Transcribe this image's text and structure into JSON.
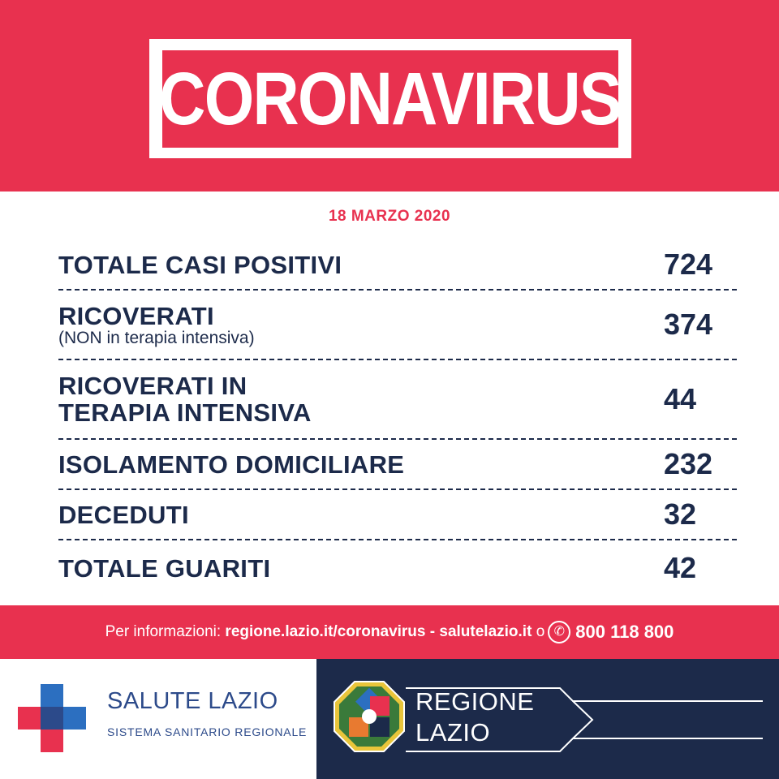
{
  "header": {
    "title": "CORONAVIRUS"
  },
  "date": "18 MARZO 2020",
  "stats": [
    {
      "label": "TOTALE CASI POSITIVI",
      "sub": "",
      "value": "724"
    },
    {
      "label": "RICOVERATI",
      "sub": "(NON in terapia intensiva)",
      "value": "374"
    },
    {
      "label_line1": "RICOVERATI IN",
      "label_line2": "TERAPIA INTENSIVA",
      "value": "44"
    },
    {
      "label": "ISOLAMENTO DOMICILIARE",
      "sub": "",
      "value": "232"
    },
    {
      "label": "DECEDUTI",
      "sub": "",
      "value": "32"
    },
    {
      "label": "TOTALE GUARITI",
      "sub": "",
      "value": "42"
    }
  ],
  "info": {
    "prefix": "Per informazioni:",
    "link1": "regione.lazio.it/coronavirus",
    "separator": "-",
    "link2": "salutelazio.it",
    "conj": "o",
    "phone_icon": "phone-icon",
    "phone": "800 118 800"
  },
  "footer": {
    "salute_title": "SALUTE LAZIO",
    "salute_sub": "SISTEMA SANITARIO REGIONALE",
    "regione_line1": "REGIONE",
    "regione_line2": "LAZIO"
  },
  "colors": {
    "accent": "#e8314f",
    "navy": "#1c2a4a",
    "blue": "#2c4a8a"
  }
}
